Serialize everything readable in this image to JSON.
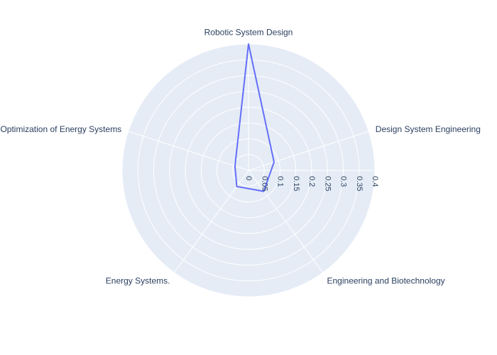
{
  "chart_data": {
    "type": "radar",
    "categories": [
      "Robotic System Design",
      "Design System Engineering",
      "Engineering and Biotechnology",
      "Energy Systems.",
      "Optimization of Energy Systems"
    ],
    "series": [
      {
        "values": [
          0.4,
          0.085,
          0.082,
          0.063,
          0.045
        ]
      }
    ],
    "radial_range": [
      0,
      0.4
    ],
    "radial_ticks": [
      "0",
      "0.05",
      "0.1",
      "0.15",
      "0.2",
      "0.25",
      "0.3",
      "0.35",
      "0.4"
    ],
    "radial_tick_values": [
      0,
      0.05,
      0.1,
      0.15,
      0.2,
      0.25,
      0.3,
      0.35,
      0.4
    ],
    "grid": true,
    "legend": "none"
  },
  "colors": {
    "polar_bg": "#e5ecf6",
    "grid": "#ffffff",
    "line": "#636efa",
    "text": "#2a3f5f"
  }
}
